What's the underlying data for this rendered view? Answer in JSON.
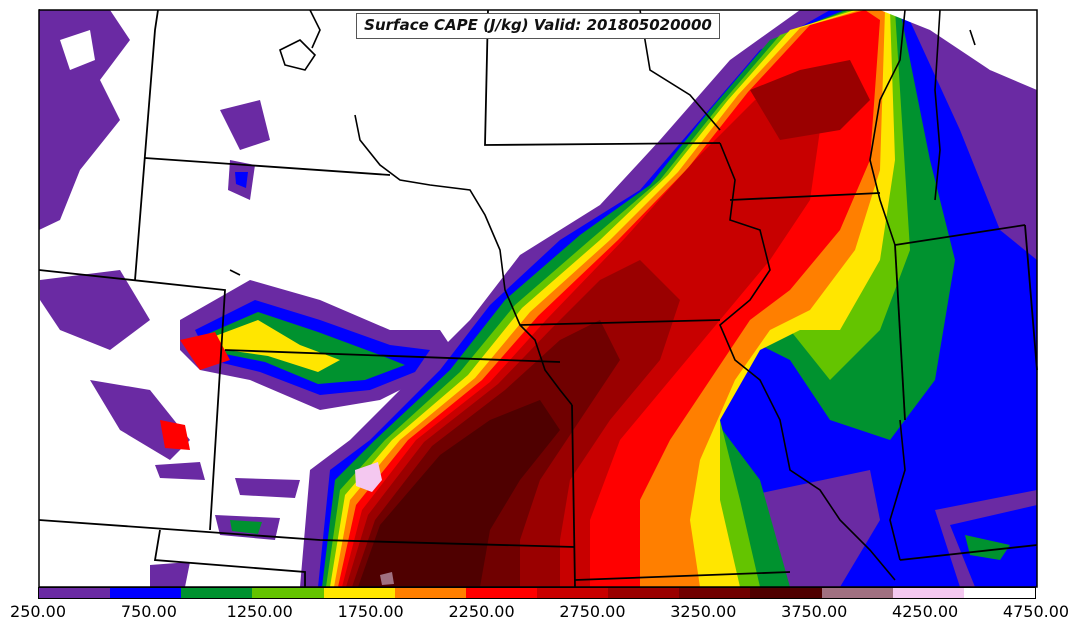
{
  "title": "Surface CAPE (J/kg) Valid: 201805020000",
  "colorbar": {
    "colors": [
      "#6a2aa3",
      "#0000ff",
      "#00922f",
      "#64c400",
      "#ffe600",
      "#ff7f00",
      "#ff0000",
      "#c80000",
      "#9a0000",
      "#700000",
      "#4f0000",
      "#a07080",
      "#f4c8f0",
      "#ffffff"
    ],
    "tick_labels": [
      "250.00",
      "750.00",
      "1250.00",
      "1750.00",
      "2250.00",
      "2750.00",
      "3250.00",
      "3750.00",
      "4250.00",
      "4750.00"
    ]
  },
  "map": {
    "features": [
      "cape-contours",
      "state-borders",
      "coastlines"
    ]
  }
}
